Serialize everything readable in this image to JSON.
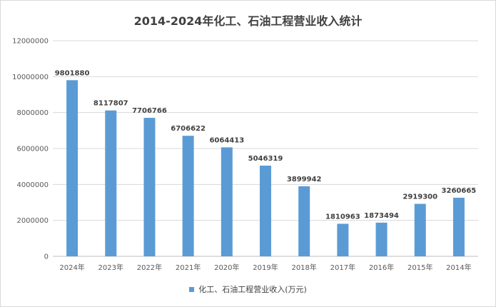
{
  "colors": {
    "bar": "#5b9bd5",
    "grid": "#d9d9d9",
    "axis": "#bfbfbf"
  },
  "chart_data": {
    "type": "bar",
    "title": "2014-2024年化工、石油工程营业收入统计",
    "categories": [
      "2024年",
      "2023年",
      "2022年",
      "2021年",
      "2020年",
      "2019年",
      "2018年",
      "2017年",
      "2016年",
      "2015年",
      "2014年"
    ],
    "series": [
      {
        "name": "化工、石油工程营业收入(万元)",
        "values": [
          9801880,
          8117807,
          7706766,
          6706622,
          6064413,
          5046319,
          3899942,
          1810963,
          1873494,
          2919300,
          3260665
        ]
      }
    ],
    "y_ticks": [
      "0",
      "2000000",
      "4000000",
      "6000000",
      "8000000",
      "10000000",
      "12000000"
    ],
    "ylim": [
      0,
      12000000
    ],
    "grid": true,
    "legend": "bottom"
  }
}
